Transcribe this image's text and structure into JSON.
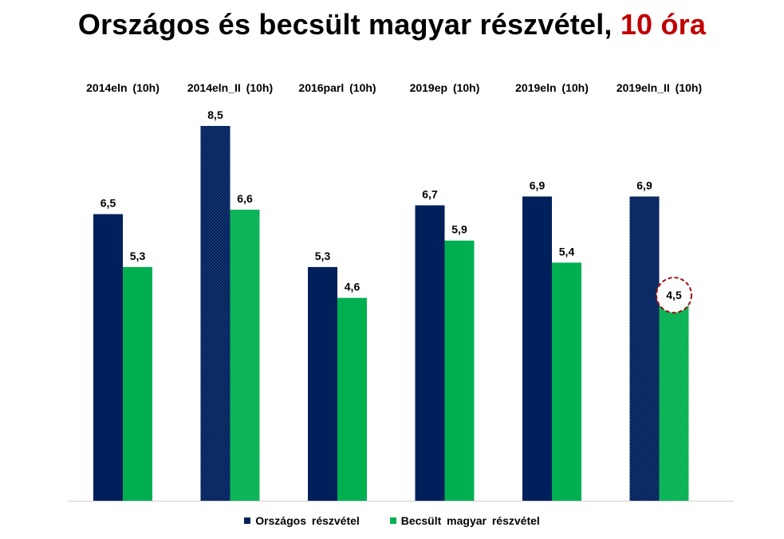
{
  "title": {
    "main": "Országos és becsült magyar részvétel,",
    "accent": "10 óra"
  },
  "colors": {
    "national": "#00205b",
    "hungarian": "#00b050",
    "title_accent": "#c00000",
    "highlight_circle": "#a01010"
  },
  "chart_data": {
    "type": "bar",
    "categories": [
      "2014eln (10h)",
      "2014eln_II (10h)",
      "2016parl (10h)",
      "2019ep (10h)",
      "2019eln (10h)",
      "2019eln_II (10h)"
    ],
    "series": [
      {
        "name": "Országos részvétel",
        "values": [
          6.5,
          8.5,
          5.3,
          6.7,
          6.9,
          6.9
        ],
        "labels": [
          "6,5",
          "8,5",
          "5,3",
          "6,7",
          "6,9",
          "6,9"
        ]
      },
      {
        "name": "Becsült magyar részvétel",
        "values": [
          5.3,
          6.6,
          4.6,
          5.9,
          5.4,
          4.5
        ],
        "labels": [
          "5,3",
          "6,6",
          "4,6",
          "5,9",
          "5,4",
          "4,5"
        ]
      }
    ],
    "patterned_categories": [
      "2014eln_II (10h)",
      "2019eln_II (10h)"
    ],
    "highlighted_value": {
      "category": "2019eln_II (10h)",
      "series": "Becsült magyar részvétel"
    },
    "ylim": [
      0,
      9
    ],
    "grid": false,
    "legend_position": "bottom"
  }
}
